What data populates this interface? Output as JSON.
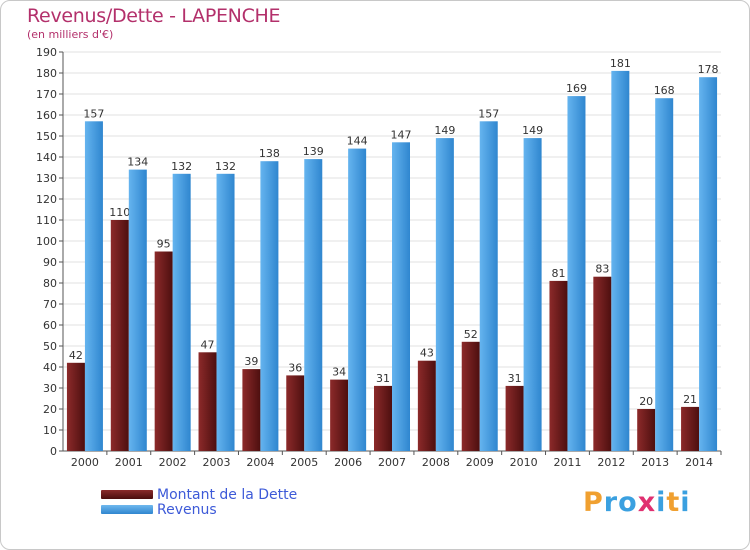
{
  "header": {
    "title": "Revenus/Dette - LAPENCHE",
    "subtitle": "(en milliers d'€)"
  },
  "legend": {
    "dette_label": "Montant de la Dette",
    "revenus_label": "Revenus"
  },
  "logo": {
    "letters": [
      "P",
      "r",
      "o",
      "x",
      "i",
      "t",
      "i"
    ],
    "colors": [
      "#f0a030",
      "#3aa0e0",
      "#3aa0e0",
      "#e03070",
      "#3aa0e0",
      "#f0a030",
      "#3aa0e0"
    ]
  },
  "colors": {
    "dette": "#6b1a1a",
    "revenus": "#4aa3e8",
    "title": "#b3306b",
    "legend_text": "#3d5ad8"
  },
  "chart_data": {
    "type": "bar",
    "title": "Revenus/Dette - LAPENCHE",
    "subtitle": "(en milliers d'€)",
    "categories": [
      "2000",
      "2001",
      "2002",
      "2003",
      "2004",
      "2005",
      "2006",
      "2007",
      "2008",
      "2009",
      "2010",
      "2011",
      "2012",
      "2013",
      "2014"
    ],
    "series": [
      {
        "name": "Montant de la Dette",
        "values": [
          42,
          110,
          95,
          47,
          39,
          36,
          34,
          31,
          43,
          52,
          31,
          81,
          83,
          20,
          21
        ]
      },
      {
        "name": "Revenus",
        "values": [
          157,
          134,
          132,
          132,
          138,
          139,
          144,
          147,
          149,
          157,
          149,
          169,
          181,
          168,
          178
        ]
      }
    ],
    "ylim": [
      0,
      190
    ],
    "ytick_step": 10,
    "grid": true,
    "legend_position": "bottom-left"
  }
}
